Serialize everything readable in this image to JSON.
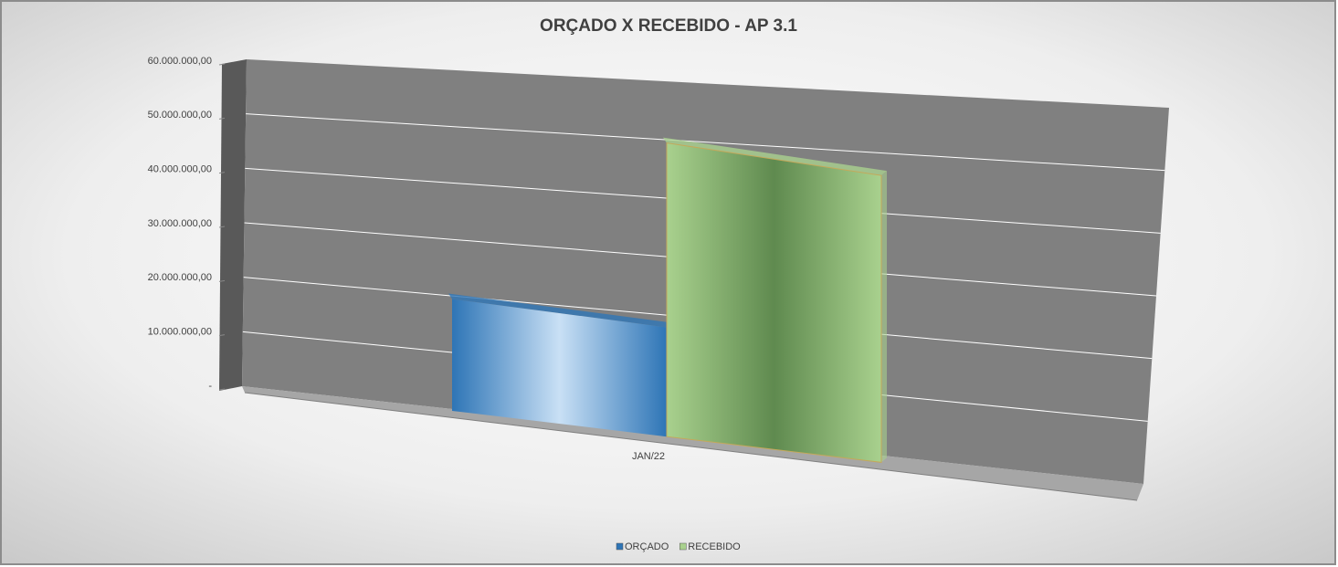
{
  "chart_data": {
    "type": "bar3d",
    "title": "ORÇADO X RECEBIDO - AP 3.1",
    "categories": [
      "JAN/22"
    ],
    "series": [
      {
        "name": "ORÇADO",
        "color": "#2e75b6",
        "values": [
          17500000
        ]
      },
      {
        "name": "RECEBIDO",
        "color": "#a9d18e",
        "values": [
          47000000
        ]
      }
    ],
    "ylim": [
      0,
      60000000
    ],
    "yticks": [
      {
        "value": 0,
        "label": "-"
      },
      {
        "value": 10000000,
        "label": "10.000.000,00"
      },
      {
        "value": 20000000,
        "label": "20.000.000,00"
      },
      {
        "value": 30000000,
        "label": "30.000.000,00"
      },
      {
        "value": 40000000,
        "label": "40.000.000,00"
      },
      {
        "value": 50000000,
        "label": "50.000.000,00"
      },
      {
        "value": 60000000,
        "label": "60.000.000,00"
      }
    ],
    "grid": true,
    "legend": "bottom"
  }
}
